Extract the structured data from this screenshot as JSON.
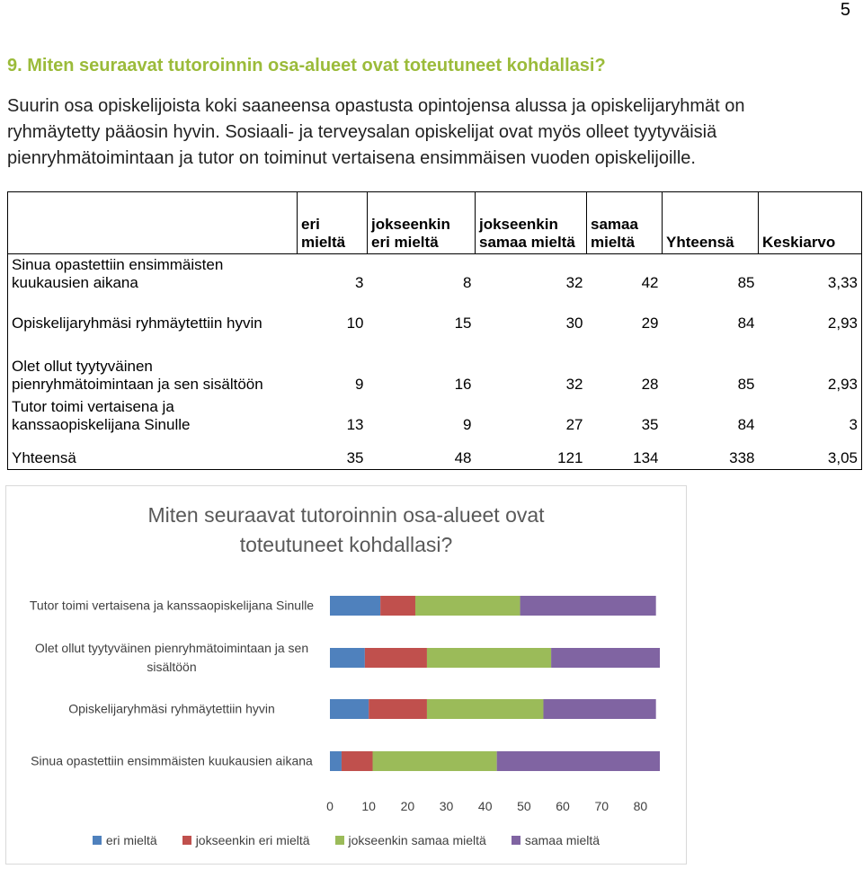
{
  "page_number": "5",
  "heading": "9. Miten seuraavat tutoroinnin osa-alueet ovat toteutuneet kohdallasi?",
  "paragraph": "Suurin osa opiskelijoista koki saaneensa opastusta opintojensa alussa ja opiskelijaryhmät on ryhmäytetty pääosin hyvin. Sosiaali- ja terveysalan opiskelijat ovat myös olleet tyytyväisiä pienryhmätoimintaan ja tutor on toiminut vertaisena ensimmäisen vuoden opiskelijoille.",
  "table": {
    "header": [
      "eri mieltä",
      "jokseenkin eri mieltä",
      "jokseenkin samaa mieltä",
      "samaa mieltä",
      "Yhteensä",
      "Keskiarvo"
    ],
    "rows": [
      [
        "Sinua opastettiin ensimmäisten kuukausien aikana",
        "3",
        "8",
        "32",
        "42",
        "85",
        "3,33"
      ],
      [
        "Opiskelijaryhmäsi ryhmäytettiin hyvin",
        "10",
        "15",
        "30",
        "29",
        "84",
        "2,93"
      ],
      [
        "Olet ollut tyytyväinen pienryhmätoimintaan ja sen sisältöön",
        "9",
        "16",
        "32",
        "28",
        "85",
        "2,93"
      ],
      [
        "Tutor toimi vertaisena ja kanssaopiskelijana Sinulle",
        "13",
        "9",
        "27",
        "35",
        "84",
        "3"
      ],
      [
        "Yhteensä",
        "35",
        "48",
        "121",
        "134",
        "338",
        "3,05"
      ]
    ]
  },
  "chart_data": {
    "type": "stacked_barh",
    "title": "Miten seuraavat tutoroinnin osa-alueet ovat toteutuneet kohdallasi?",
    "categories": [
      "Tutor toimi vertaisena ja kanssaopiskelijana Sinulle",
      "Olet ollut tyytyväinen pienryhmätoimintaan ja sen sisältöön",
      "Opiskelijaryhmäsi ryhmäytettiin hyvin",
      "Sinua opastettiin ensimmäisten kuukausien aikana"
    ],
    "series": [
      {
        "name": "eri mieltä",
        "color": "#4f81bd",
        "values": [
          13,
          9,
          10,
          3
        ]
      },
      {
        "name": "jokseenkin eri mieltä",
        "color": "#c0504d",
        "values": [
          9,
          16,
          15,
          8
        ]
      },
      {
        "name": "jokseenkin samaa mieltä",
        "color": "#9bbb59",
        "values": [
          27,
          32,
          30,
          32
        ]
      },
      {
        "name": "samaa mieltä",
        "color": "#8064a2",
        "values": [
          35,
          28,
          29,
          42
        ]
      }
    ],
    "xlim": [
      0,
      85
    ],
    "xticks": [
      0,
      10,
      20,
      30,
      40,
      50,
      60,
      70,
      80
    ],
    "legend": "bottom"
  }
}
